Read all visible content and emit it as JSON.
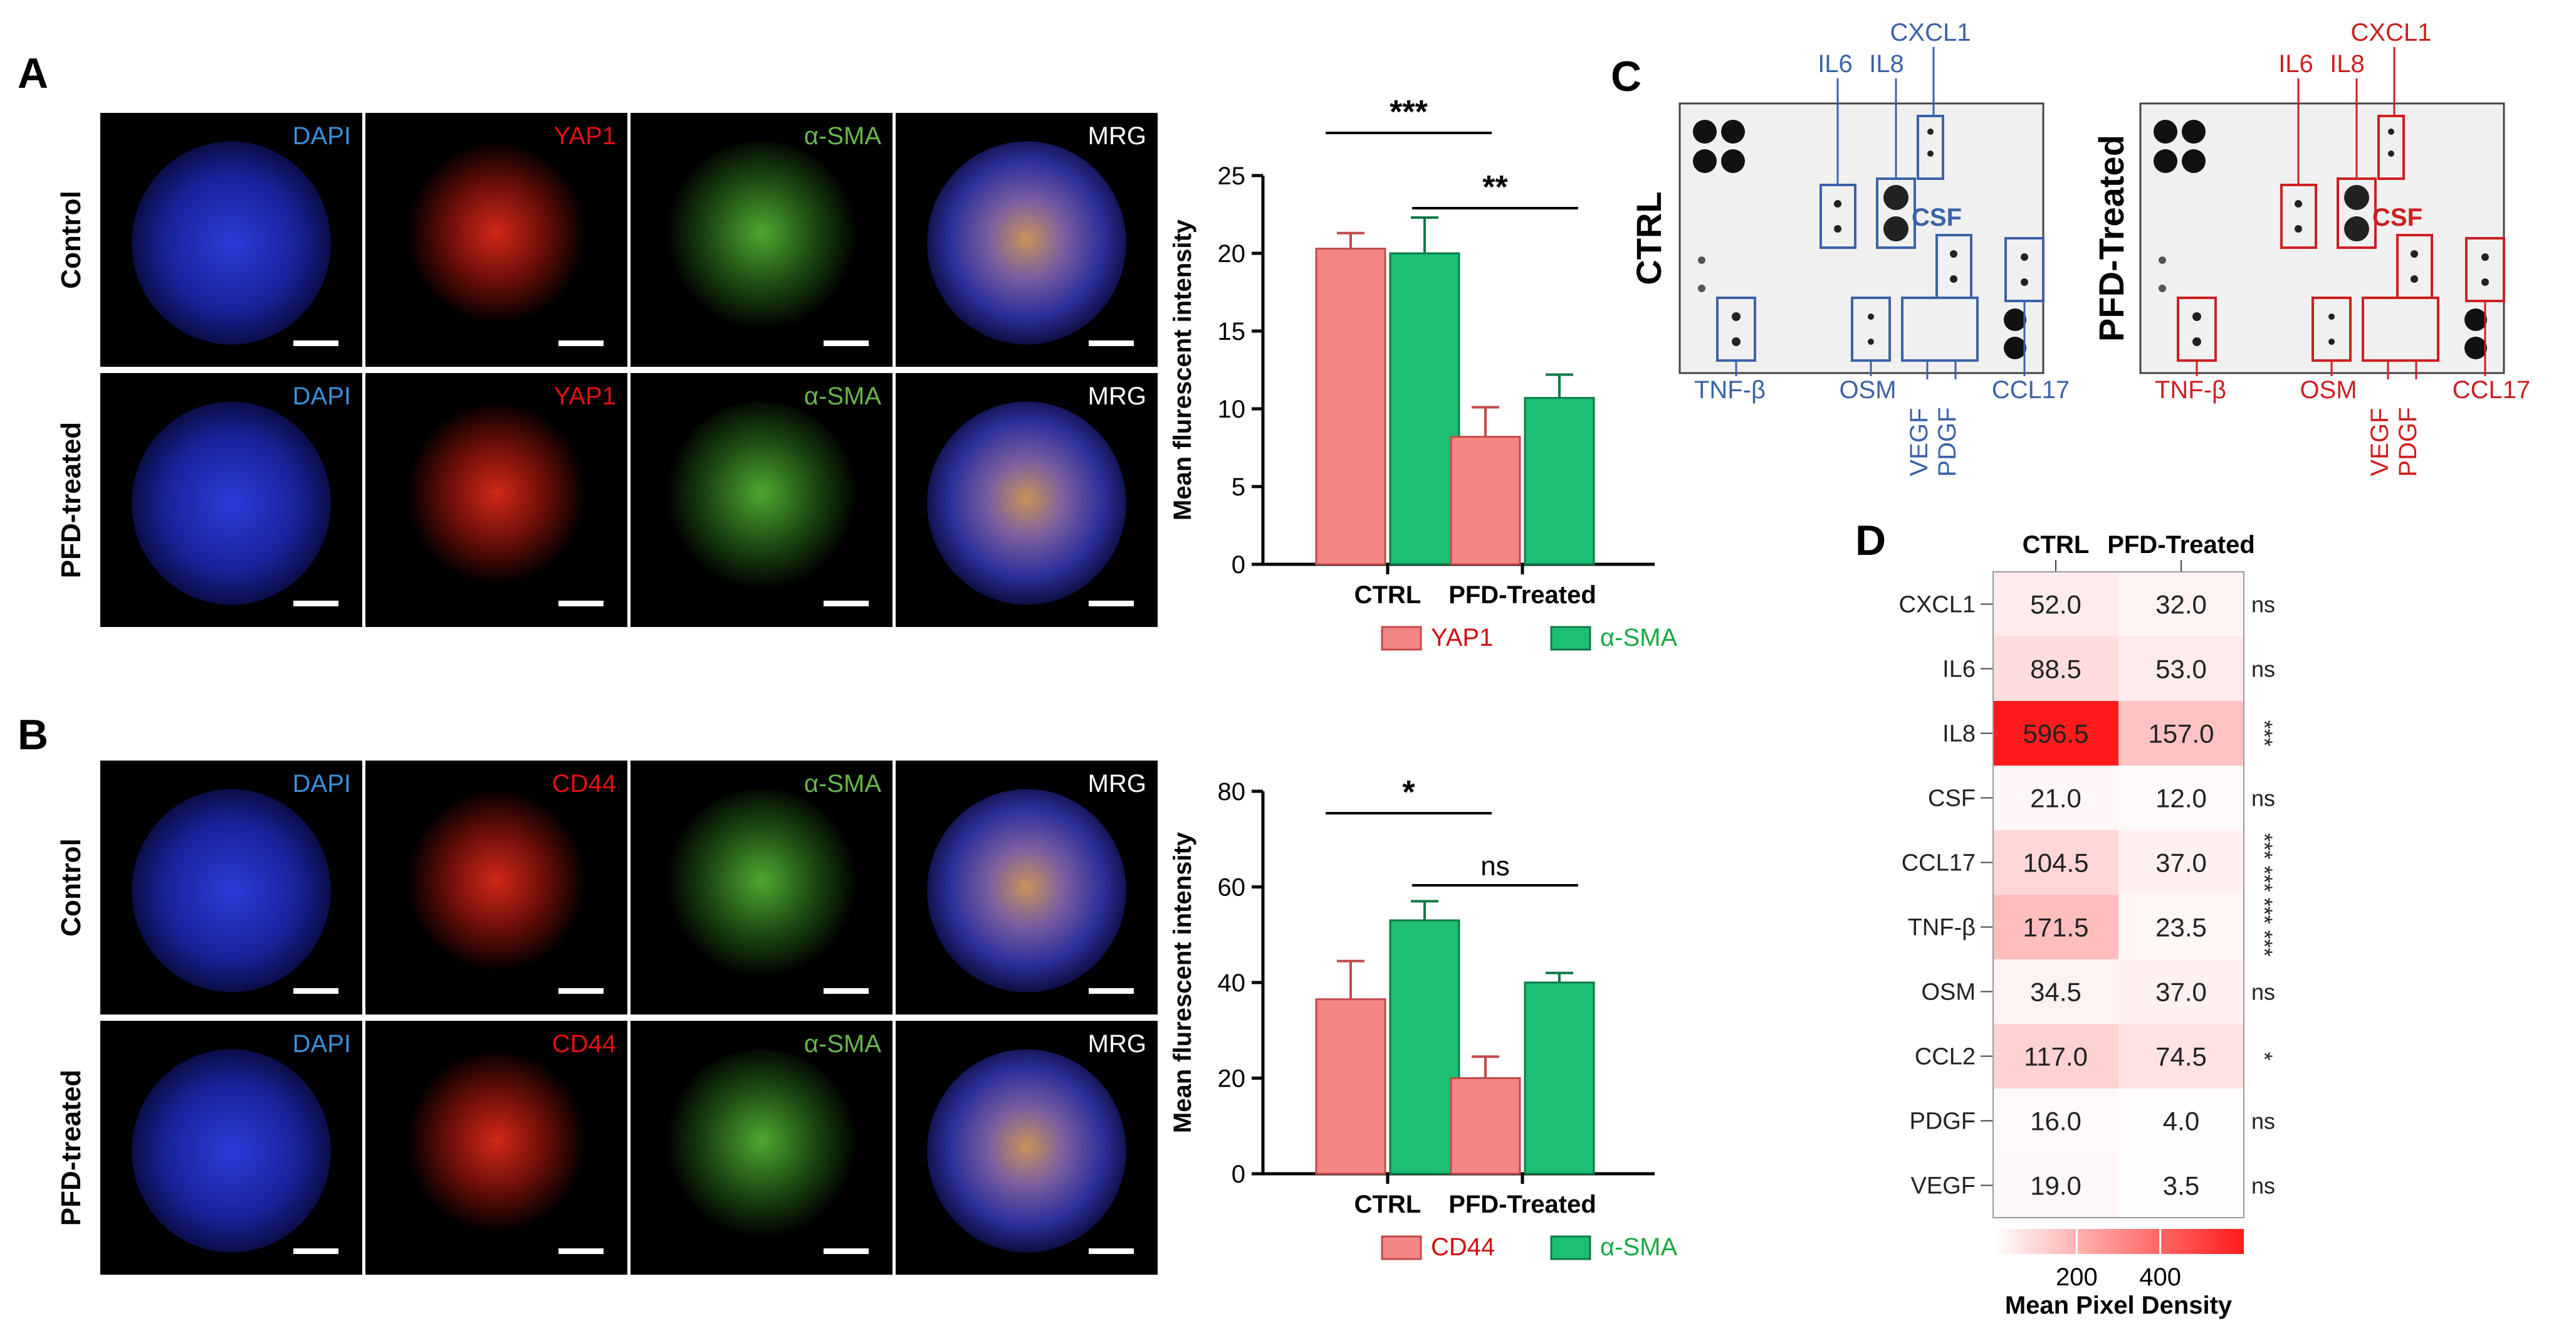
{
  "panels": {
    "A": "A",
    "B": "B",
    "C": "C",
    "D": "D"
  },
  "microscopy": {
    "A": {
      "channels": [
        "DAPI",
        "YAP1",
        "α-SMA",
        "MRG"
      ],
      "rows": [
        "Control",
        "PFD-treated"
      ]
    },
    "B": {
      "channels": [
        "DAPI",
        "CD44",
        "α-SMA",
        "MRG"
      ],
      "rows": [
        "Control",
        "PFD-treated"
      ]
    }
  },
  "colors": {
    "dapi_label": "#3a8fd8",
    "red_label": "#e01010",
    "green_label": "#66b84a",
    "bar_pink": "#f48686",
    "bar_green": "#1cbf74",
    "array_blue": "#3a63a8",
    "array_red": "#cc2020",
    "heat_max": "#ff1a1a",
    "heat_min": "#ffffff"
  },
  "chart_data": [
    {
      "id": "A",
      "type": "bar",
      "ylabel": "Mean flurescent intensity",
      "ylim": [
        0,
        25
      ],
      "yticks": [
        0,
        5,
        10,
        15,
        20,
        25
      ],
      "categories": [
        "CTRL",
        "PFD-Treated"
      ],
      "series": [
        {
          "name": "YAP1",
          "values": [
            20.3,
            8.2
          ],
          "errors": [
            1.0,
            1.9
          ],
          "color": "#f48686"
        },
        {
          "name": "α-SMA",
          "values": [
            20.0,
            10.7
          ],
          "errors": [
            2.3,
            1.5
          ],
          "color": "#1cbf74"
        }
      ],
      "annotations": [
        {
          "text": "***",
          "between": "CTRL-YAP1 vs PFD-YAP1"
        },
        {
          "text": "**",
          "between": "CTRL-α-SMA vs PFD-α-SMA"
        }
      ],
      "legend": "bottom",
      "grid": false
    },
    {
      "id": "B",
      "type": "bar",
      "ylabel": "Mean flurescent intensity",
      "ylim": [
        0,
        80
      ],
      "yticks": [
        0,
        20,
        40,
        60,
        80
      ],
      "categories": [
        "CTRL",
        "PFD-Treated"
      ],
      "series": [
        {
          "name": "CD44",
          "values": [
            36.5,
            20.0
          ],
          "errors": [
            8.0,
            4.5
          ],
          "color": "#f48686"
        },
        {
          "name": "α-SMA",
          "values": [
            53.0,
            40.0
          ],
          "errors": [
            4.0,
            2.0
          ],
          "color": "#1cbf74"
        }
      ],
      "annotations": [
        {
          "text": "*",
          "between": "CTRL-CD44 vs PFD-CD44"
        },
        {
          "text": "ns",
          "between": "CTRL-α-SMA vs PFD-α-SMA"
        }
      ],
      "legend": "bottom",
      "grid": false
    },
    {
      "id": "D",
      "type": "heatmap",
      "columns": [
        "CTRL",
        "PFD-Treated"
      ],
      "rows": [
        "CXCL1",
        "IL6",
        "IL8",
        "CSF",
        "CCL17",
        "TNF-β",
        "OSM",
        "CCL2",
        "PDGF",
        "VEGF"
      ],
      "values": [
        [
          52.0,
          32.0
        ],
        [
          88.5,
          53.0
        ],
        [
          596.5,
          157.0
        ],
        [
          21.0,
          12.0
        ],
        [
          104.5,
          37.0
        ],
        [
          171.5,
          23.5
        ],
        [
          34.5,
          37.0
        ],
        [
          117.0,
          74.5
        ],
        [
          16.0,
          4.0
        ],
        [
          19.0,
          3.5
        ]
      ],
      "labels": [
        [
          "52.0",
          "32.0"
        ],
        [
          "88.5",
          "53.0"
        ],
        [
          "596.5",
          "157.0"
        ],
        [
          "21.0",
          "12.0"
        ],
        [
          "104.5",
          "37.0"
        ],
        [
          "171.5",
          "23.5"
        ],
        [
          "34.5",
          "37.0"
        ],
        [
          "117.0",
          "74.5"
        ],
        [
          "16.0",
          "4.0"
        ],
        [
          "19.0",
          "3.5"
        ]
      ],
      "significance": [
        "ns",
        "ns",
        "***",
        "ns",
        "*** ***",
        "*** ***",
        "ns",
        "*",
        "ns",
        "ns"
      ],
      "colorbar": {
        "label": "Mean Pixel Density",
        "ticks": [
          200,
          400
        ],
        "range": [
          0,
          600
        ]
      }
    }
  ],
  "array": {
    "ctrl_label": "CTRL",
    "pfd_label": "PFD-Treated",
    "ctrl_labels": [
      "IL6",
      "IL8",
      "CXCL1",
      "CSF",
      "TNF-β",
      "OSM",
      "VEGF",
      "PDGF",
      "CCL17"
    ],
    "pfd_labels": [
      "IL6",
      "IL8",
      "CXCL1",
      "CSF",
      "TNF-β",
      "OSM",
      "VEGF",
      "PDGF",
      "CCL17"
    ]
  }
}
